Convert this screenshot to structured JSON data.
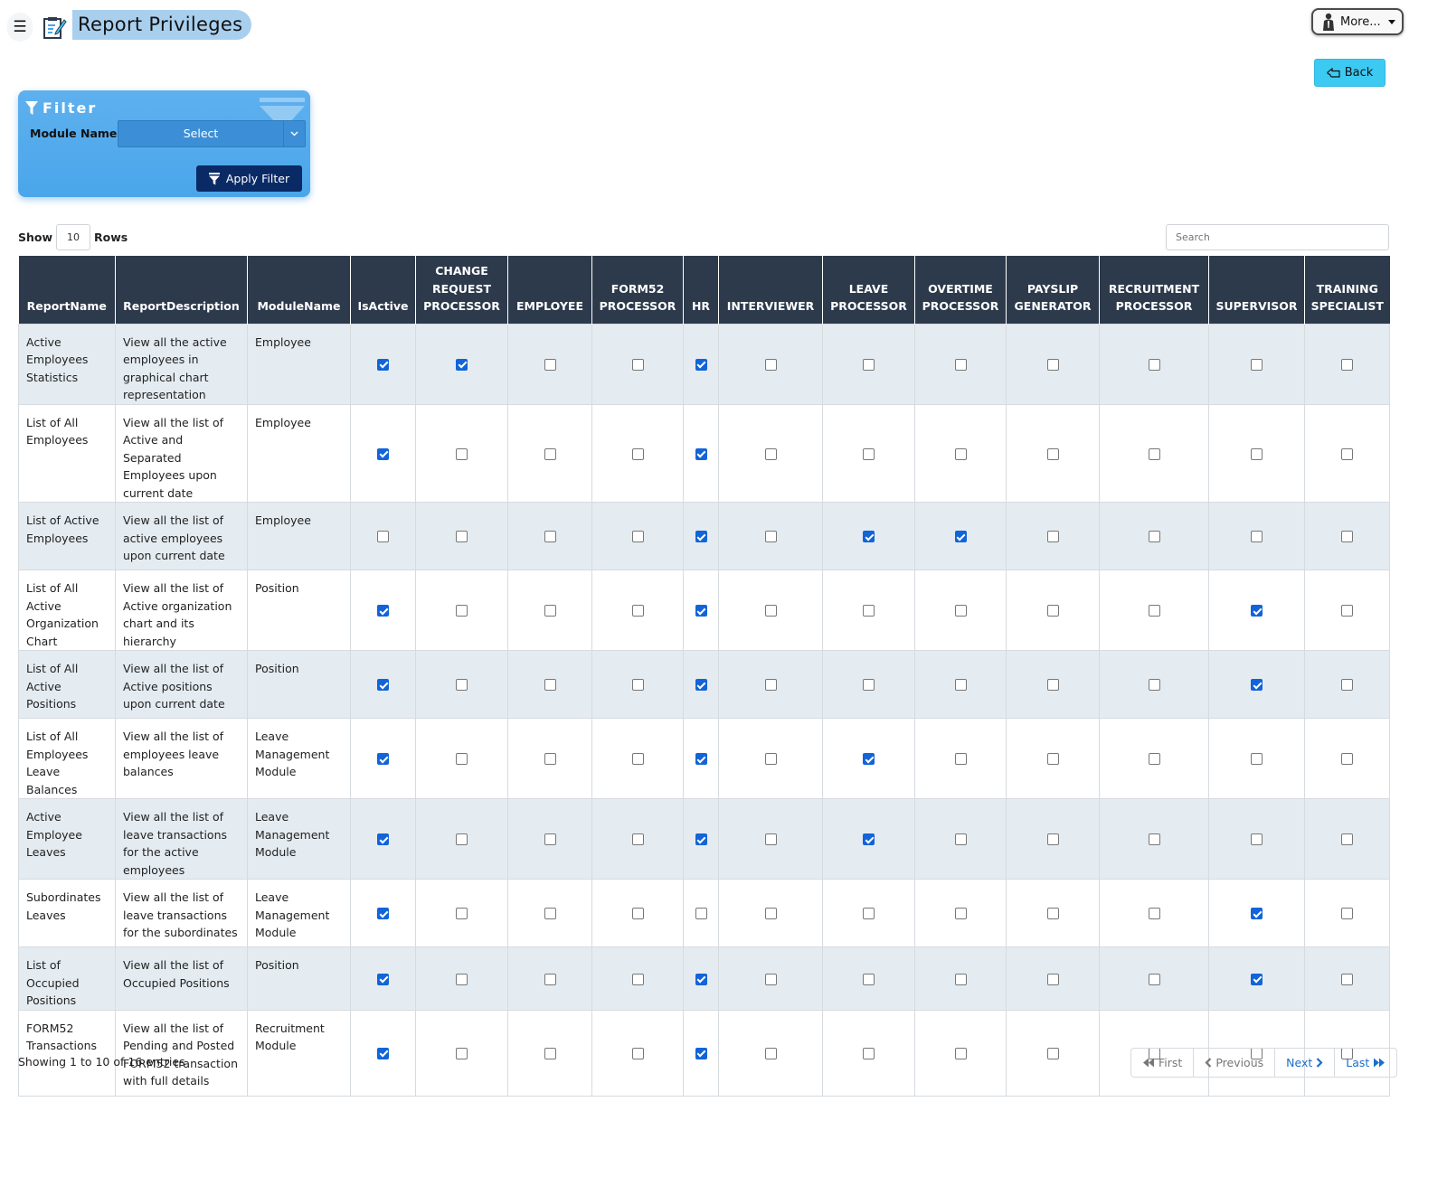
{
  "header": {
    "title": "Report Privileges",
    "more_label": "More...",
    "back_label": "Back"
  },
  "filter": {
    "title": "Filter",
    "module_label": "Module Name:",
    "module_value": "Select",
    "apply_label": "Apply Filter"
  },
  "table_controls": {
    "show_label": "Show",
    "rows_value": "10",
    "rows_label": "Rows",
    "search_placeholder": "Search"
  },
  "table": {
    "columns": [
      "ReportName",
      "ReportDescription",
      "ModuleName",
      "IsActive",
      "CHANGE REQUEST PROCESSOR",
      "EMPLOYEE",
      "FORM52 PROCESSOR",
      "HR",
      "INTERVIEWER",
      "LEAVE PROCESSOR",
      "OVERTIME PROCESSOR",
      "PAYSLIP GENERATOR",
      "RECRUITMENT PROCESSOR",
      "SUPERVISOR",
      "TRAINING SPECIALIST"
    ],
    "rows": [
      {
        "name": "Active Employees Statistics",
        "description": "View all the active employees in graphical chart representation",
        "module": "Employee",
        "flags": [
          true,
          true,
          false,
          false,
          true,
          false,
          false,
          false,
          false,
          false,
          false,
          false
        ]
      },
      {
        "name": "List of All Employees",
        "description": "View all the list of Active and Separated Employees upon current date",
        "module": "Employee",
        "flags": [
          true,
          false,
          false,
          false,
          true,
          false,
          false,
          false,
          false,
          false,
          false,
          false
        ]
      },
      {
        "name": "List of Active Employees",
        "description": "View all the list of active employees upon current date",
        "module": "Employee",
        "flags": [
          false,
          false,
          false,
          false,
          true,
          false,
          true,
          true,
          false,
          false,
          false,
          false
        ]
      },
      {
        "name": "List of All Active Organization Chart",
        "description": "View all the list of Active organization chart and its hierarchy",
        "module": "Position",
        "flags": [
          true,
          false,
          false,
          false,
          true,
          false,
          false,
          false,
          false,
          false,
          true,
          false
        ]
      },
      {
        "name": "List of All Active Positions",
        "description": "View all the list of Active positions upon current date",
        "module": "Position",
        "flags": [
          true,
          false,
          false,
          false,
          true,
          false,
          false,
          false,
          false,
          false,
          true,
          false
        ]
      },
      {
        "name": "List of All Employees Leave Balances",
        "description": "View all the list of employees leave balances",
        "module": "Leave Management Module",
        "flags": [
          true,
          false,
          false,
          false,
          true,
          false,
          true,
          false,
          false,
          false,
          false,
          false
        ]
      },
      {
        "name": "Active Employee Leaves",
        "description": "View all the list of leave transactions for the active employees",
        "module": "Leave Management Module",
        "flags": [
          true,
          false,
          false,
          false,
          true,
          false,
          true,
          false,
          false,
          false,
          false,
          false
        ]
      },
      {
        "name": "Subordinates Leaves",
        "description": "View all the list of leave transactions for the subordinates",
        "module": "Leave Management Module",
        "flags": [
          true,
          false,
          false,
          false,
          false,
          false,
          false,
          false,
          false,
          false,
          true,
          false
        ]
      },
      {
        "name": "List of Occupied Positions",
        "description": "View all the list of Occupied Positions",
        "module": "Position",
        "flags": [
          true,
          false,
          false,
          false,
          true,
          false,
          false,
          false,
          false,
          false,
          true,
          false
        ]
      },
      {
        "name": "FORM52 Transactions",
        "description": "View all the list of Pending and Posted FORM52 transaction with full details",
        "module": "Recruitment Module",
        "flags": [
          true,
          false,
          false,
          false,
          true,
          false,
          false,
          false,
          false,
          false,
          false,
          false
        ]
      }
    ]
  },
  "footer": {
    "entries_text": "Showing 1 to 10 of 16 entries",
    "first_label": "First",
    "previous_label": "Previous",
    "next_label": "Next",
    "last_label": "Last"
  },
  "colors": {
    "header_bg": "#2d3a4c",
    "row_alt_bg": "#e5ecf1",
    "filter_bg": "#4aa6ea",
    "apply_bg": "#0a2a66",
    "back_bg": "#3ccaf2",
    "checkbox_checked": "#1264d8",
    "pager_active": "#1a6fc9"
  },
  "icons": {
    "menu": "hamburger-icon",
    "title": "report-edit-icon",
    "user": "user-avatar-icon",
    "back": "back-hand-icon",
    "filter": "funnel-icon",
    "select": "chevron-down-icon",
    "first": "double-chevron-left-icon",
    "previous": "chevron-left-icon",
    "next": "chevron-right-icon",
    "last": "double-chevron-right-icon"
  }
}
